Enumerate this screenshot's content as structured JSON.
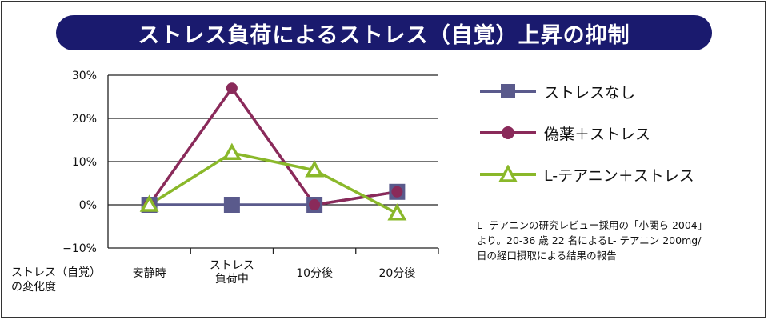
{
  "title": "ストレス負荷によるストレス（自覚）上昇の抑制",
  "y_axis_label_line1": "ストレス（自覚）",
  "y_axis_label_line2": "の変化度",
  "note_lines": [
    "L- テアニンの研究レビュー採用の「小関ら 2004」",
    "より。20-36 歳 22 名によるL- テアニン 200mg/",
    "日の経口摂取による結果の報告"
  ],
  "chart_data": {
    "type": "line",
    "title": "ストレス負荷によるストレス（自覚）上昇の抑制",
    "ylabel": "ストレス（自覚）の変化度",
    "ylim": [
      -10,
      30
    ],
    "yticks": [
      -10,
      0,
      10,
      20,
      30
    ],
    "ytick_labels": [
      "−10%",
      "0%",
      "10%",
      "20%",
      "30%"
    ],
    "grid": true,
    "categories": [
      "安静時",
      "ストレス\n負荷中",
      "10分後",
      "20分後"
    ],
    "series": [
      {
        "name": "ストレスなし",
        "marker": "square",
        "color": "#5a5a8c",
        "values": [
          0,
          0,
          0,
          3
        ]
      },
      {
        "name": "偽薬＋ストレス",
        "marker": "circle",
        "color": "#8a2a5a",
        "values": [
          0,
          27,
          0,
          3
        ]
      },
      {
        "name": "L-テアニン＋ストレス",
        "marker": "triangle",
        "color": "#8ab82a",
        "values": [
          0,
          12,
          8,
          -2
        ]
      }
    ],
    "legend_position": "right"
  }
}
